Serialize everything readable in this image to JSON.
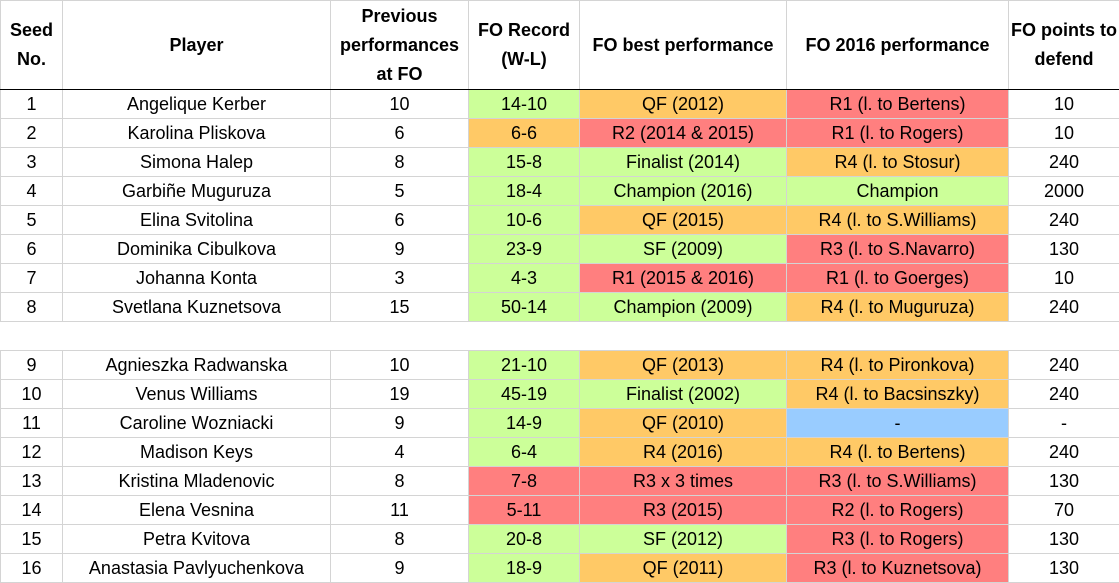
{
  "headers": {
    "seed": "Seed No.",
    "player": "Player",
    "previous": "Previous performances at FO",
    "record": "FO Record (W-L)",
    "best": "FO best performance",
    "perf2016": "FO 2016 performance",
    "points": "FO points to defend"
  },
  "colors": {
    "green": "#ccff99",
    "orange": "#ffc966",
    "red": "#ff7f7f",
    "blue": "#99ccff"
  },
  "rows_top": [
    {
      "seed": "1",
      "player": "Angelique Kerber",
      "prev": "10",
      "record": "14-10",
      "record_c": "green",
      "best": "QF (2012)",
      "best_c": "orange",
      "perf": "R1 (l. to Bertens)",
      "perf_c": "red",
      "points": "10"
    },
    {
      "seed": "2",
      "player": "Karolina Pliskova",
      "prev": "6",
      "record": "6-6",
      "record_c": "orange",
      "best": "R2 (2014 & 2015)",
      "best_c": "red",
      "perf": "R1 (l. to Rogers)",
      "perf_c": "red",
      "points": "10"
    },
    {
      "seed": "3",
      "player": "Simona Halep",
      "prev": "8",
      "record": "15-8",
      "record_c": "green",
      "best": "Finalist (2014)",
      "best_c": "green",
      "perf": "R4 (l. to Stosur)",
      "perf_c": "orange",
      "points": "240"
    },
    {
      "seed": "4",
      "player": "Garbiñe Muguruza",
      "prev": "5",
      "record": "18-4",
      "record_c": "green",
      "best": "Champion (2016)",
      "best_c": "green",
      "perf": "Champion",
      "perf_c": "green",
      "points": "2000"
    },
    {
      "seed": "5",
      "player": "Elina Svitolina",
      "prev": "6",
      "record": "10-6",
      "record_c": "green",
      "best": "QF (2015)",
      "best_c": "orange",
      "perf": "R4 (l. to S.Williams)",
      "perf_c": "orange",
      "points": "240"
    },
    {
      "seed": "6",
      "player": "Dominika Cibulkova",
      "prev": "9",
      "record": "23-9",
      "record_c": "green",
      "best": "SF (2009)",
      "best_c": "green",
      "perf": "R3 (l. to S.Navarro)",
      "perf_c": "red",
      "points": "130"
    },
    {
      "seed": "7",
      "player": "Johanna Konta",
      "prev": "3",
      "record": "4-3",
      "record_c": "green",
      "best": "R1 (2015 & 2016)",
      "best_c": "red",
      "perf": "R1 (l. to Goerges)",
      "perf_c": "red",
      "points": "10"
    },
    {
      "seed": "8",
      "player": "Svetlana Kuznetsova",
      "prev": "15",
      "record": "50-14",
      "record_c": "green",
      "best": "Champion (2009)",
      "best_c": "green",
      "perf": "R4 (l. to Muguruza)",
      "perf_c": "orange",
      "points": "240"
    }
  ],
  "rows_bottom": [
    {
      "seed": "9",
      "player": "Agnieszka Radwanska",
      "prev": "10",
      "record": "21-10",
      "record_c": "green",
      "best": "QF (2013)",
      "best_c": "orange",
      "perf": "R4 (l. to Pironkova)",
      "perf_c": "orange",
      "points": "240"
    },
    {
      "seed": "10",
      "player": "Venus Williams",
      "prev": "19",
      "record": "45-19",
      "record_c": "green",
      "best": "Finalist (2002)",
      "best_c": "green",
      "perf": "R4 (l. to Bacsinszky)",
      "perf_c": "orange",
      "points": "240"
    },
    {
      "seed": "11",
      "player": "Caroline Wozniacki",
      "prev": "9",
      "record": "14-9",
      "record_c": "green",
      "best": "QF (2010)",
      "best_c": "orange",
      "perf": "-",
      "perf_c": "blue",
      "points": "-"
    },
    {
      "seed": "12",
      "player": "Madison Keys",
      "prev": "4",
      "record": "6-4",
      "record_c": "green",
      "best": "R4 (2016)",
      "best_c": "orange",
      "perf": "R4 (l. to Bertens)",
      "perf_c": "orange",
      "points": "240"
    },
    {
      "seed": "13",
      "player": "Kristina Mladenovic",
      "prev": "8",
      "record": "7-8",
      "record_c": "red",
      "best": "R3 x 3 times",
      "best_c": "red",
      "perf": "R3 (l. to S.Williams)",
      "perf_c": "red",
      "points": "130"
    },
    {
      "seed": "14",
      "player": "Elena Vesnina",
      "prev": "11",
      "record": "5-11",
      "record_c": "red",
      "best": "R3 (2015)",
      "best_c": "red",
      "perf": "R2 (l. to Rogers)",
      "perf_c": "red",
      "points": "70"
    },
    {
      "seed": "15",
      "player": "Petra Kvitova",
      "prev": "8",
      "record": "20-8",
      "record_c": "green",
      "best": "SF (2012)",
      "best_c": "green",
      "perf": "R3 (l. to Rogers)",
      "perf_c": "red",
      "points": "130"
    },
    {
      "seed": "16",
      "player": "Anastasia Pavlyuchenkova",
      "prev": "9",
      "record": "18-9",
      "record_c": "green",
      "best": "QF (2011)",
      "best_c": "orange",
      "perf": "R3 (l. to Kuznetsova)",
      "perf_c": "red",
      "points": "130"
    }
  ]
}
